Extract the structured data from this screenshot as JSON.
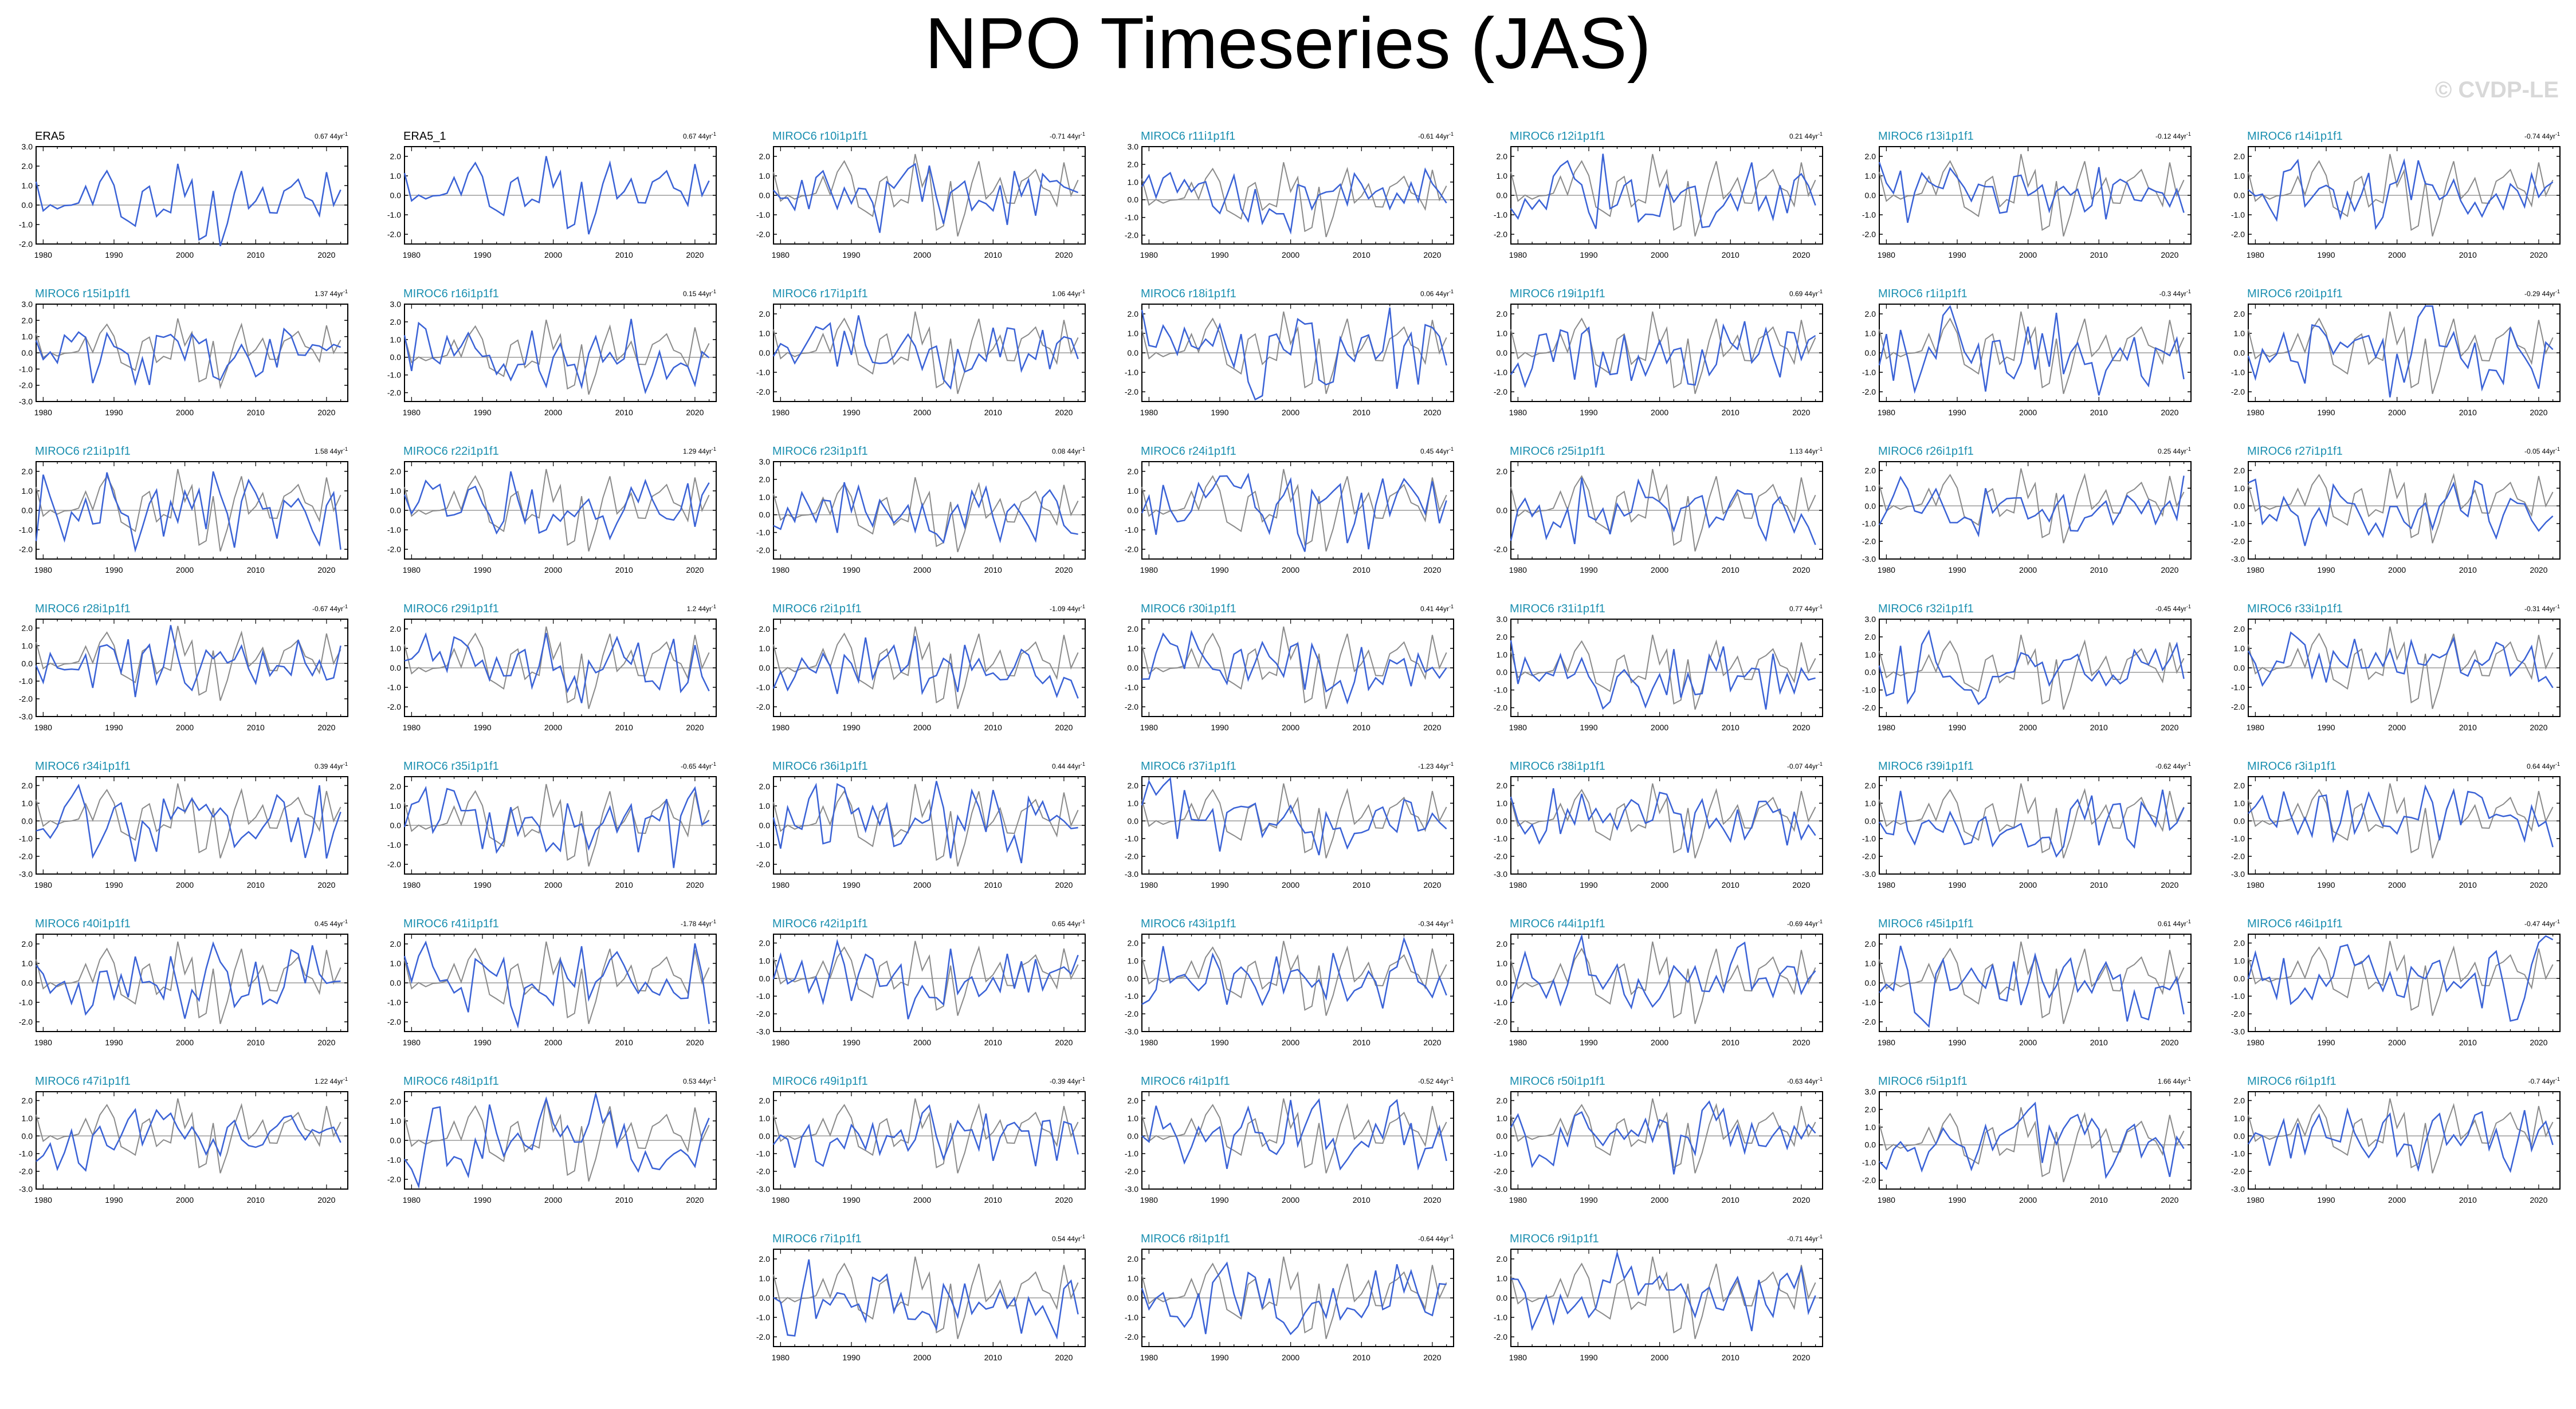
{
  "title": "NPO Timeseries (JAS)",
  "watermark": "© CVDP-LE",
  "colors": {
    "model": "#3a62d6",
    "observation": "#8a8a8a",
    "model_label": "#1a8fb0",
    "obs_label": "#000000"
  },
  "chart_data": {
    "type": "line",
    "x_ticks": [
      1980,
      1990,
      2000,
      2010,
      2020
    ],
    "xlim": [
      1979,
      2023
    ],
    "trend_unit": "44yr",
    "panels": [
      {
        "label": "ERA5",
        "trend": "0.67",
        "ylim": [
          -2.0,
          3.0
        ],
        "yticks": [
          "3.0",
          "2.0",
          "1.0",
          "0.0",
          "-1.0",
          "-2.0"
        ],
        "obs": true
      },
      {
        "label": "ERA5_1",
        "trend": "0.67",
        "ylim": [
          -2.5,
          2.5
        ],
        "yticks": [
          "2.0",
          "1.0",
          "0.0",
          "-1.0",
          "-2.0"
        ],
        "obs": true
      },
      {
        "label": "MIROC6 r10i1p1f1",
        "trend": "-0.71",
        "ylim": [
          -2.5,
          2.5
        ],
        "yticks": [
          "2.0",
          "1.0",
          "0.0",
          "-1.0",
          "-2.0"
        ]
      },
      {
        "label": "MIROC6 r11i1p1f1",
        "trend": "-0.61",
        "ylim": [
          -2.5,
          3.0
        ],
        "yticks": [
          "3.0",
          "2.0",
          "1.0",
          "0.0",
          "-1.0",
          "-2.0"
        ]
      },
      {
        "label": "MIROC6 r12i1p1f1",
        "trend": "0.21",
        "ylim": [
          -2.5,
          2.5
        ],
        "yticks": [
          "2.0",
          "1.0",
          "0.0",
          "-1.0",
          "-2.0"
        ]
      },
      {
        "label": "MIROC6 r13i1p1f1",
        "trend": "-0.12",
        "ylim": [
          -2.5,
          2.5
        ],
        "yticks": [
          "2.0",
          "1.0",
          "0.0",
          "-1.0",
          "-2.0"
        ]
      },
      {
        "label": "MIROC6 r14i1p1f1",
        "trend": "-0.74",
        "ylim": [
          -2.5,
          2.5
        ],
        "yticks": [
          "2.0",
          "1.0",
          "0.0",
          "-1.0",
          "-2.0"
        ]
      },
      {
        "label": "MIROC6 r15i1p1f1",
        "trend": "1.37",
        "ylim": [
          -3.0,
          3.0
        ],
        "yticks": [
          "3.0",
          "2.0",
          "1.0",
          "0.0",
          "-1.0",
          "-2.0",
          "-3.0"
        ]
      },
      {
        "label": "MIROC6 r16i1p1f1",
        "trend": "0.15",
        "ylim": [
          -2.5,
          3.0
        ],
        "yticks": [
          "3.0",
          "2.0",
          "1.0",
          "0.0",
          "-1.0",
          "-2.0"
        ]
      },
      {
        "label": "MIROC6 r17i1p1f1",
        "trend": "1.06",
        "ylim": [
          -2.5,
          2.5
        ],
        "yticks": [
          "2.0",
          "1.0",
          "0.0",
          "-1.0",
          "-2.0"
        ]
      },
      {
        "label": "MIROC6 r18i1p1f1",
        "trend": "0.06",
        "ylim": [
          -2.5,
          2.5
        ],
        "yticks": [
          "2.0",
          "1.0",
          "0.0",
          "-1.0",
          "-2.0"
        ]
      },
      {
        "label": "MIROC6 r19i1p1f1",
        "trend": "0.69",
        "ylim": [
          -2.5,
          2.5
        ],
        "yticks": [
          "2.0",
          "1.0",
          "0.0",
          "-1.0",
          "-2.0"
        ]
      },
      {
        "label": "MIROC6 r1i1p1f1",
        "trend": "-0.3",
        "ylim": [
          -2.5,
          2.5
        ],
        "yticks": [
          "2.0",
          "1.0",
          "0.0",
          "-1.0",
          "-2.0"
        ]
      },
      {
        "label": "MIROC6 r20i1p1f1",
        "trend": "-0.29",
        "ylim": [
          -2.5,
          2.5
        ],
        "yticks": [
          "2.0",
          "1.0",
          "0.0",
          "-1.0",
          "-2.0"
        ]
      },
      {
        "label": "MIROC6 r21i1p1f1",
        "trend": "1.58",
        "ylim": [
          -2.5,
          2.5
        ],
        "yticks": [
          "2.0",
          "1.0",
          "0.0",
          "-1.0",
          "-2.0"
        ]
      },
      {
        "label": "MIROC6 r22i1p1f1",
        "trend": "1.29",
        "ylim": [
          -2.5,
          2.5
        ],
        "yticks": [
          "2.0",
          "1.0",
          "0.0",
          "-1.0",
          "-2.0"
        ]
      },
      {
        "label": "MIROC6 r23i1p1f1",
        "trend": "0.08",
        "ylim": [
          -2.5,
          3.0
        ],
        "yticks": [
          "3.0",
          "2.0",
          "1.0",
          "0.0",
          "-1.0",
          "-2.0"
        ]
      },
      {
        "label": "MIROC6 r24i1p1f1",
        "trend": "0.45",
        "ylim": [
          -2.5,
          2.5
        ],
        "yticks": [
          "2.0",
          "1.0",
          "0.0",
          "-1.0",
          "-2.0"
        ]
      },
      {
        "label": "MIROC6 r25i1p1f1",
        "trend": "1.13",
        "ylim": [
          -2.5,
          2.5
        ],
        "yticks": [
          "2.0",
          "0.0",
          "-2.0"
        ]
      },
      {
        "label": "MIROC6 r26i1p1f1",
        "trend": "0.25",
        "ylim": [
          -3.0,
          2.5
        ],
        "yticks": [
          "2.0",
          "1.0",
          "0.0",
          "-1.0",
          "-2.0",
          "-3.0"
        ]
      },
      {
        "label": "MIROC6 r27i1p1f1",
        "trend": "-0.05",
        "ylim": [
          -3.0,
          2.5
        ],
        "yticks": [
          "2.0",
          "1.0",
          "0.0",
          "-1.0",
          "-2.0",
          "-3.0"
        ]
      },
      {
        "label": "MIROC6 r28i1p1f1",
        "trend": "-0.67",
        "ylim": [
          -3.0,
          2.5
        ],
        "yticks": [
          "2.0",
          "1.0",
          "0.0",
          "-1.0",
          "-2.0",
          "-3.0"
        ]
      },
      {
        "label": "MIROC6 r29i1p1f1",
        "trend": "1.2",
        "ylim": [
          -2.5,
          2.5
        ],
        "yticks": [
          "2.0",
          "1.0",
          "0.0",
          "-1.0",
          "-2.0"
        ]
      },
      {
        "label": "MIROC6 r2i1p1f1",
        "trend": "-1.09",
        "ylim": [
          -2.5,
          2.5
        ],
        "yticks": [
          "2.0",
          "1.0",
          "0.0",
          "-1.0",
          "-2.0"
        ]
      },
      {
        "label": "MIROC6 r30i1p1f1",
        "trend": "0.41",
        "ylim": [
          -2.5,
          2.5
        ],
        "yticks": [
          "2.0",
          "1.0",
          "0.0",
          "-1.0",
          "-2.0"
        ]
      },
      {
        "label": "MIROC6 r31i1p1f1",
        "trend": "0.77",
        "ylim": [
          -2.5,
          3.0
        ],
        "yticks": [
          "3.0",
          "2.0",
          "1.0",
          "0.0",
          "-1.0",
          "-2.0"
        ]
      },
      {
        "label": "MIROC6 r32i1p1f1",
        "trend": "-0.45",
        "ylim": [
          -2.5,
          3.0
        ],
        "yticks": [
          "3.0",
          "2.0",
          "1.0",
          "0.0",
          "-1.0",
          "-2.0"
        ]
      },
      {
        "label": "MIROC6 r33i1p1f1",
        "trend": "-0.31",
        "ylim": [
          -2.5,
          2.5
        ],
        "yticks": [
          "2.0",
          "1.0",
          "0.0",
          "-1.0",
          "-2.0"
        ]
      },
      {
        "label": "MIROC6 r34i1p1f1",
        "trend": "0.39",
        "ylim": [
          -3.0,
          2.5
        ],
        "yticks": [
          "2.0",
          "1.0",
          "0.0",
          "-1.0",
          "-2.0",
          "-3.0"
        ]
      },
      {
        "label": "MIROC6 r35i1p1f1",
        "trend": "-0.65",
        "ylim": [
          -2.5,
          2.5
        ],
        "yticks": [
          "2.0",
          "1.0",
          "0.0",
          "-1.0",
          "-2.0"
        ]
      },
      {
        "label": "MIROC6 r36i1p1f1",
        "trend": "0.44",
        "ylim": [
          -2.5,
          2.5
        ],
        "yticks": [
          "2.0",
          "1.0",
          "0.0",
          "-1.0",
          "-2.0"
        ]
      },
      {
        "label": "MIROC6 r37i1p1f1",
        "trend": "-1.23",
        "ylim": [
          -3.0,
          2.5
        ],
        "yticks": [
          "2.0",
          "1.0",
          "0.0",
          "-1.0",
          "-2.0",
          "-3.0"
        ]
      },
      {
        "label": "MIROC6 r38i1p1f1",
        "trend": "-0.07",
        "ylim": [
          -3.0,
          2.5
        ],
        "yticks": [
          "2.0",
          "1.0",
          "0.0",
          "-1.0",
          "-2.0",
          "-3.0"
        ]
      },
      {
        "label": "MIROC6 r39i1p1f1",
        "trend": "-0.62",
        "ylim": [
          -3.0,
          2.5
        ],
        "yticks": [
          "2.0",
          "1.0",
          "0.0",
          "-1.0",
          "-2.0",
          "-3.0"
        ]
      },
      {
        "label": "MIROC6 r3i1p1f1",
        "trend": "0.64",
        "ylim": [
          -3.0,
          2.5
        ],
        "yticks": [
          "2.0",
          "1.0",
          "0.0",
          "-1.0",
          "-2.0",
          "-3.0"
        ]
      },
      {
        "label": "MIROC6 r40i1p1f1",
        "trend": "0.45",
        "ylim": [
          -2.5,
          2.5
        ],
        "yticks": [
          "2.0",
          "1.0",
          "0.0",
          "-1.0",
          "-2.0"
        ]
      },
      {
        "label": "MIROC6 r41i1p1f1",
        "trend": "-1.78",
        "ylim": [
          -2.5,
          2.5
        ],
        "yticks": [
          "2.0",
          "1.0",
          "0.0",
          "-1.0",
          "-2.0"
        ]
      },
      {
        "label": "MIROC6 r42i1p1f1",
        "trend": "0.65",
        "ylim": [
          -3.0,
          2.5
        ],
        "yticks": [
          "2.0",
          "1.0",
          "0.0",
          "-1.0",
          "-2.0",
          "-3.0"
        ]
      },
      {
        "label": "MIROC6 r43i1p1f1",
        "trend": "-0.34",
        "ylim": [
          -3.0,
          2.5
        ],
        "yticks": [
          "2.0",
          "1.0",
          "0.0",
          "-1.0",
          "-2.0",
          "-3.0"
        ]
      },
      {
        "label": "MIROC6 r44i1p1f1",
        "trend": "-0.69",
        "ylim": [
          -2.5,
          2.5
        ],
        "yticks": [
          "2.0",
          "1.0",
          "0.0",
          "-1.0",
          "-2.0"
        ]
      },
      {
        "label": "MIROC6 r45i1p1f1",
        "trend": "0.61",
        "ylim": [
          -2.5,
          2.5
        ],
        "yticks": [
          "2.0",
          "1.0",
          "0.0",
          "-1.0",
          "-2.0"
        ]
      },
      {
        "label": "MIROC6 r46i1p1f1",
        "trend": "-0.47",
        "ylim": [
          -3.0,
          2.5
        ],
        "yticks": [
          "2.0",
          "1.0",
          "0.0",
          "-1.0",
          "-2.0",
          "-3.0"
        ]
      },
      {
        "label": "MIROC6 r47i1p1f1",
        "trend": "1.22",
        "ylim": [
          -3.0,
          2.5
        ],
        "yticks": [
          "2.0",
          "1.0",
          "0.0",
          "-1.0",
          "-2.0",
          "-3.0"
        ]
      },
      {
        "label": "MIROC6 r48i1p1f1",
        "trend": "0.53",
        "ylim": [
          -2.5,
          2.5
        ],
        "yticks": [
          "2.0",
          "1.0",
          "0.0",
          "-1.0",
          "-2.0"
        ]
      },
      {
        "label": "MIROC6 r49i1p1f1",
        "trend": "-0.39",
        "ylim": [
          -3.0,
          2.5
        ],
        "yticks": [
          "2.0",
          "1.0",
          "0.0",
          "-1.0",
          "-2.0",
          "-3.0"
        ]
      },
      {
        "label": "MIROC6 r4i1p1f1",
        "trend": "-0.52",
        "ylim": [
          -3.0,
          2.5
        ],
        "yticks": [
          "2.0",
          "1.0",
          "0.0",
          "-1.0",
          "-2.0",
          "-3.0"
        ]
      },
      {
        "label": "MIROC6 r50i1p1f1",
        "trend": "-0.63",
        "ylim": [
          -3.0,
          2.5
        ],
        "yticks": [
          "2.0",
          "1.0",
          "0.0",
          "-1.0",
          "-2.0",
          "-3.0"
        ]
      },
      {
        "label": "MIROC6 r5i1p1f1",
        "trend": "1.66",
        "ylim": [
          -2.5,
          3.0
        ],
        "yticks": [
          "3.0",
          "2.0",
          "1.0",
          "0.0",
          "-1.0",
          "-2.0"
        ]
      },
      {
        "label": "MIROC6 r6i1p1f1",
        "trend": "-0.7",
        "ylim": [
          -3.0,
          2.5
        ],
        "yticks": [
          "2.0",
          "1.0",
          "0.0",
          "-1.0",
          "-2.0",
          "-3.0"
        ]
      },
      {
        "label": "MIROC6 r7i1p1f1",
        "trend": "0.54",
        "ylim": [
          -2.5,
          2.5
        ],
        "yticks": [
          "2.0",
          "1.0",
          "0.0",
          "-1.0",
          "-2.0"
        ]
      },
      {
        "label": "MIROC6 r8i1p1f1",
        "trend": "-0.64",
        "ylim": [
          -2.5,
          2.5
        ],
        "yticks": [
          "2.0",
          "1.0",
          "0.0",
          "-1.0",
          "-2.0"
        ]
      },
      {
        "label": "MIROC6 r9i1p1f1",
        "trend": "-0.71",
        "ylim": [
          -2.5,
          2.5
        ],
        "yticks": [
          "2.0",
          "1.0",
          "0.0",
          "-1.0",
          "-2.0"
        ]
      }
    ]
  }
}
